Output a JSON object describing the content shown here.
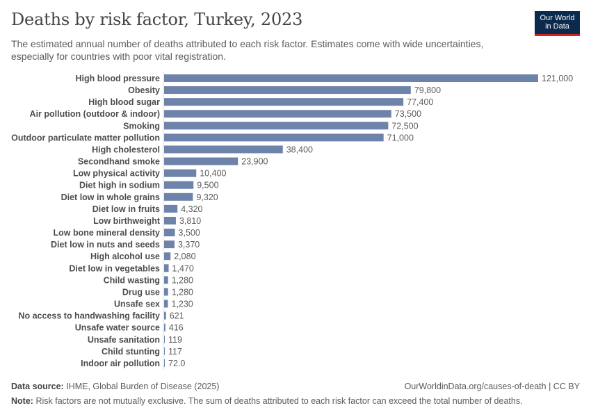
{
  "header": {
    "title": "Deaths by risk factor, Turkey, 2023",
    "subtitle": "The estimated annual number of deaths attributed to each risk factor. Estimates come with wide uncertainties, especially for countries with poor vital registration."
  },
  "logo": {
    "line1": "Our World",
    "line2": "in Data",
    "bg_color": "#0b2a4d",
    "accent_color": "#ce261e"
  },
  "footer": {
    "source_label": "Data source:",
    "source_text": "IHME, Global Burden of Disease (2025)",
    "url_text": "OurWorldinData.org/causes-of-death | CC BY",
    "note_label": "Note:",
    "note_text": "Risk factors are not mutually exclusive. The sum of deaths attributed to each risk factor can exceed the total number of deaths."
  },
  "chart_data": {
    "type": "bar",
    "orientation": "horizontal",
    "bar_color": "#6d83aa",
    "categories": [
      "High blood pressure",
      "Obesity",
      "High blood sugar",
      "Air pollution (outdoor & indoor)",
      "Smoking",
      "Outdoor particulate matter pollution",
      "High cholesterol",
      "Secondhand smoke",
      "Low physical activity",
      "Diet high in sodium",
      "Diet low in whole grains",
      "Diet low in fruits",
      "Low birthweight",
      "Low bone mineral density",
      "Diet low in nuts and seeds",
      "High alcohol use",
      "Diet low in vegetables",
      "Child wasting",
      "Drug use",
      "Unsafe sex",
      "No access to handwashing facility",
      "Unsafe water source",
      "Unsafe sanitation",
      "Child stunting",
      "Indoor air pollution"
    ],
    "values": [
      121000,
      79800,
      77400,
      73500,
      72500,
      71000,
      38400,
      23900,
      10400,
      9500,
      9320,
      4320,
      3810,
      3500,
      3370,
      2080,
      1470,
      1280,
      1280,
      1230,
      621,
      416,
      119,
      117,
      72
    ],
    "value_labels": [
      "121,000",
      "79,800",
      "77,400",
      "73,500",
      "72,500",
      "71,000",
      "38,400",
      "23,900",
      "10,400",
      "9,500",
      "9,320",
      "4,320",
      "3,810",
      "3,500",
      "3,370",
      "2,080",
      "1,470",
      "1,280",
      "1,280",
      "1,230",
      "621",
      "416",
      "119",
      "117",
      "72.0"
    ],
    "xlim": [
      0,
      121000
    ]
  }
}
